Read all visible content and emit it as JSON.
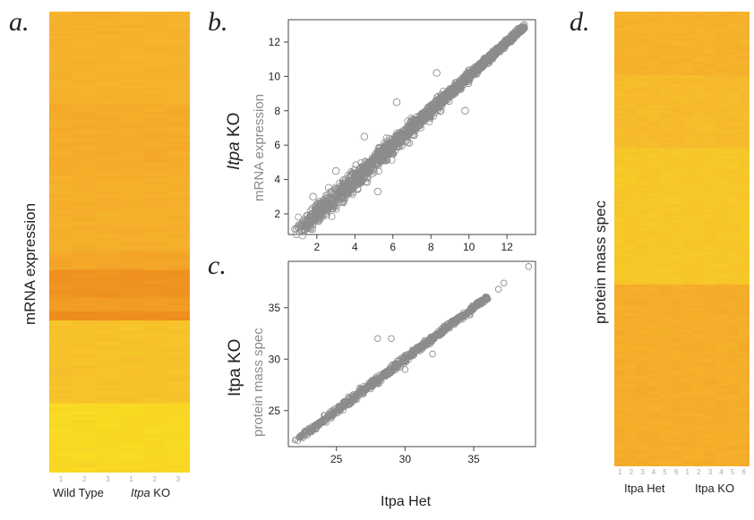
{
  "panels": {
    "a": {
      "letter": "a.",
      "ylabel": "mRNA expression",
      "col_ticks": [
        "1",
        "2",
        "3",
        "1",
        "2",
        "3"
      ],
      "group_labels": {
        "wt": "Wild Type",
        "ko_italic": "Itpa",
        "ko_rest": " KO"
      }
    },
    "b": {
      "letter": "b.",
      "ylabel_italic": "Itpa",
      "ylabel_rest": " KO",
      "ylabel_sub": "mRNA expression"
    },
    "c": {
      "letter": "c.",
      "ylabel": "Itpa KO",
      "ylabel_sub": "protein mass spec",
      "xlabel": "Itpa Het"
    },
    "d": {
      "letter": "d.",
      "ylabel": "protein mass spec",
      "col_ticks": [
        "1",
        "2",
        "3",
        "4",
        "5",
        "6",
        "1",
        "2",
        "3",
        "4",
        "5",
        "6"
      ],
      "group_labels": {
        "het": "Itpa Het",
        "ko": "Itpa KO"
      }
    }
  },
  "chart_data": [
    {
      "panel": "a",
      "type": "heatmap",
      "title": "",
      "ylabel": "mRNA expression",
      "xlabel": "",
      "columns": [
        "1",
        "2",
        "3",
        "1",
        "2",
        "3"
      ],
      "column_groups": [
        {
          "name": "Wild Type",
          "columns": 3
        },
        {
          "name": "Itpa KO",
          "columns": 3
        }
      ],
      "colormap": [
        "#f9e71e",
        "#f6b62e",
        "#ee8a1d"
      ],
      "row_bands": [
        {
          "rows": 0.2,
          "level": 0.55
        },
        {
          "rows": 0.15,
          "level": 0.62
        },
        {
          "rows": 0.17,
          "level": 0.58
        },
        {
          "rows": 0.04,
          "level": 0.68
        },
        {
          "rows": 0.06,
          "level": 0.9
        },
        {
          "rows": 0.03,
          "level": 0.8
        },
        {
          "rows": 0.02,
          "level": 0.97
        },
        {
          "rows": 0.18,
          "level": 0.38
        },
        {
          "rows": 0.15,
          "level": 0.15
        }
      ]
    },
    {
      "panel": "b",
      "type": "scatter",
      "title": "",
      "xlabel": "",
      "ylabel": "Itpa KO mRNA expression",
      "xlim": [
        0.5,
        13.5
      ],
      "ylim": [
        0.8,
        13.3
      ],
      "xticks": [
        2,
        4,
        6,
        8,
        10,
        12
      ],
      "yticks": [
        2,
        4,
        6,
        8,
        10,
        12
      ],
      "grid": false,
      "marker_color": "#8c8c8c",
      "diagonal_range": [
        1.0,
        12.9
      ],
      "spread": [
        [
          1,
          0.45
        ],
        [
          3,
          0.6
        ],
        [
          5,
          0.5
        ],
        [
          7,
          0.35
        ],
        [
          9,
          0.25
        ],
        [
          11,
          0.18
        ],
        [
          12.9,
          0.12
        ]
      ],
      "outliers": [
        [
          8.3,
          10.2
        ],
        [
          6.2,
          8.5
        ],
        [
          3.0,
          4.5
        ],
        [
          5.2,
          3.3
        ],
        [
          1.8,
          3.0
        ],
        [
          9.8,
          8.0
        ],
        [
          4.5,
          6.5
        ]
      ]
    },
    {
      "panel": "c",
      "type": "scatter",
      "title": "",
      "xlabel": "Itpa Het",
      "ylabel": "Itpa KO protein mass spec",
      "xlim": [
        21.5,
        39.5
      ],
      "ylim": [
        21.5,
        39.5
      ],
      "xticks": [
        25,
        30,
        35
      ],
      "yticks": [
        25,
        30,
        35
      ],
      "grid": false,
      "marker_color": "#8c8c8c",
      "diagonal_range": [
        22.0,
        36.0
      ],
      "spread": [
        [
          22,
          0.25
        ],
        [
          25,
          0.4
        ],
        [
          28,
          0.35
        ],
        [
          32,
          0.25
        ],
        [
          36,
          0.2
        ]
      ],
      "outliers": [
        [
          28.0,
          32.0
        ],
        [
          29.0,
          32.0
        ],
        [
          36.8,
          36.8
        ],
        [
          37.2,
          37.4
        ],
        [
          39.0,
          39.0
        ],
        [
          30.0,
          29.0
        ],
        [
          32.0,
          30.5
        ]
      ]
    },
    {
      "panel": "d",
      "type": "heatmap",
      "title": "",
      "ylabel": "protein mass spec",
      "xlabel": "",
      "columns": [
        "1",
        "2",
        "3",
        "4",
        "5",
        "6",
        "1",
        "2",
        "3",
        "4",
        "5",
        "6"
      ],
      "column_groups": [
        {
          "name": "Itpa Het",
          "columns": 6
        },
        {
          "name": "Itpa KO",
          "columns": 6
        }
      ],
      "colormap": [
        "#f9e71e",
        "#f6b62e",
        "#ee8a1d"
      ],
      "row_bands": [
        {
          "rows": 0.14,
          "level": 0.55
        },
        {
          "rows": 0.16,
          "level": 0.45
        },
        {
          "rows": 0.3,
          "level": 0.33
        },
        {
          "rows": 0.4,
          "level": 0.6
        }
      ]
    }
  ]
}
